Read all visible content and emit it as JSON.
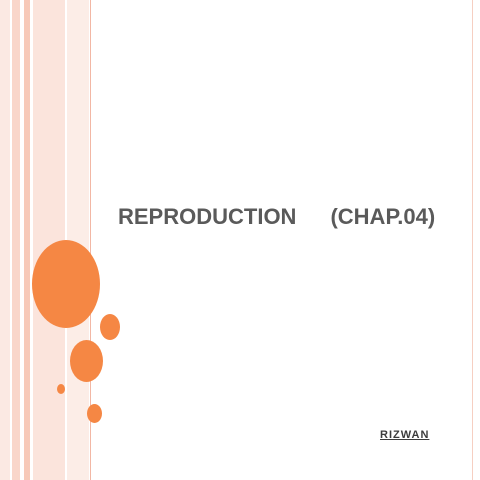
{
  "slide": {
    "title": "REPRODUCTION",
    "chapter": "(CHAP.04)",
    "author": "RIZWAN"
  },
  "colors": {
    "accent": "#f58744",
    "title_text": "#5a5a5a",
    "band_light": "#fbe4dc",
    "band_mid": "#f7c9b8"
  }
}
